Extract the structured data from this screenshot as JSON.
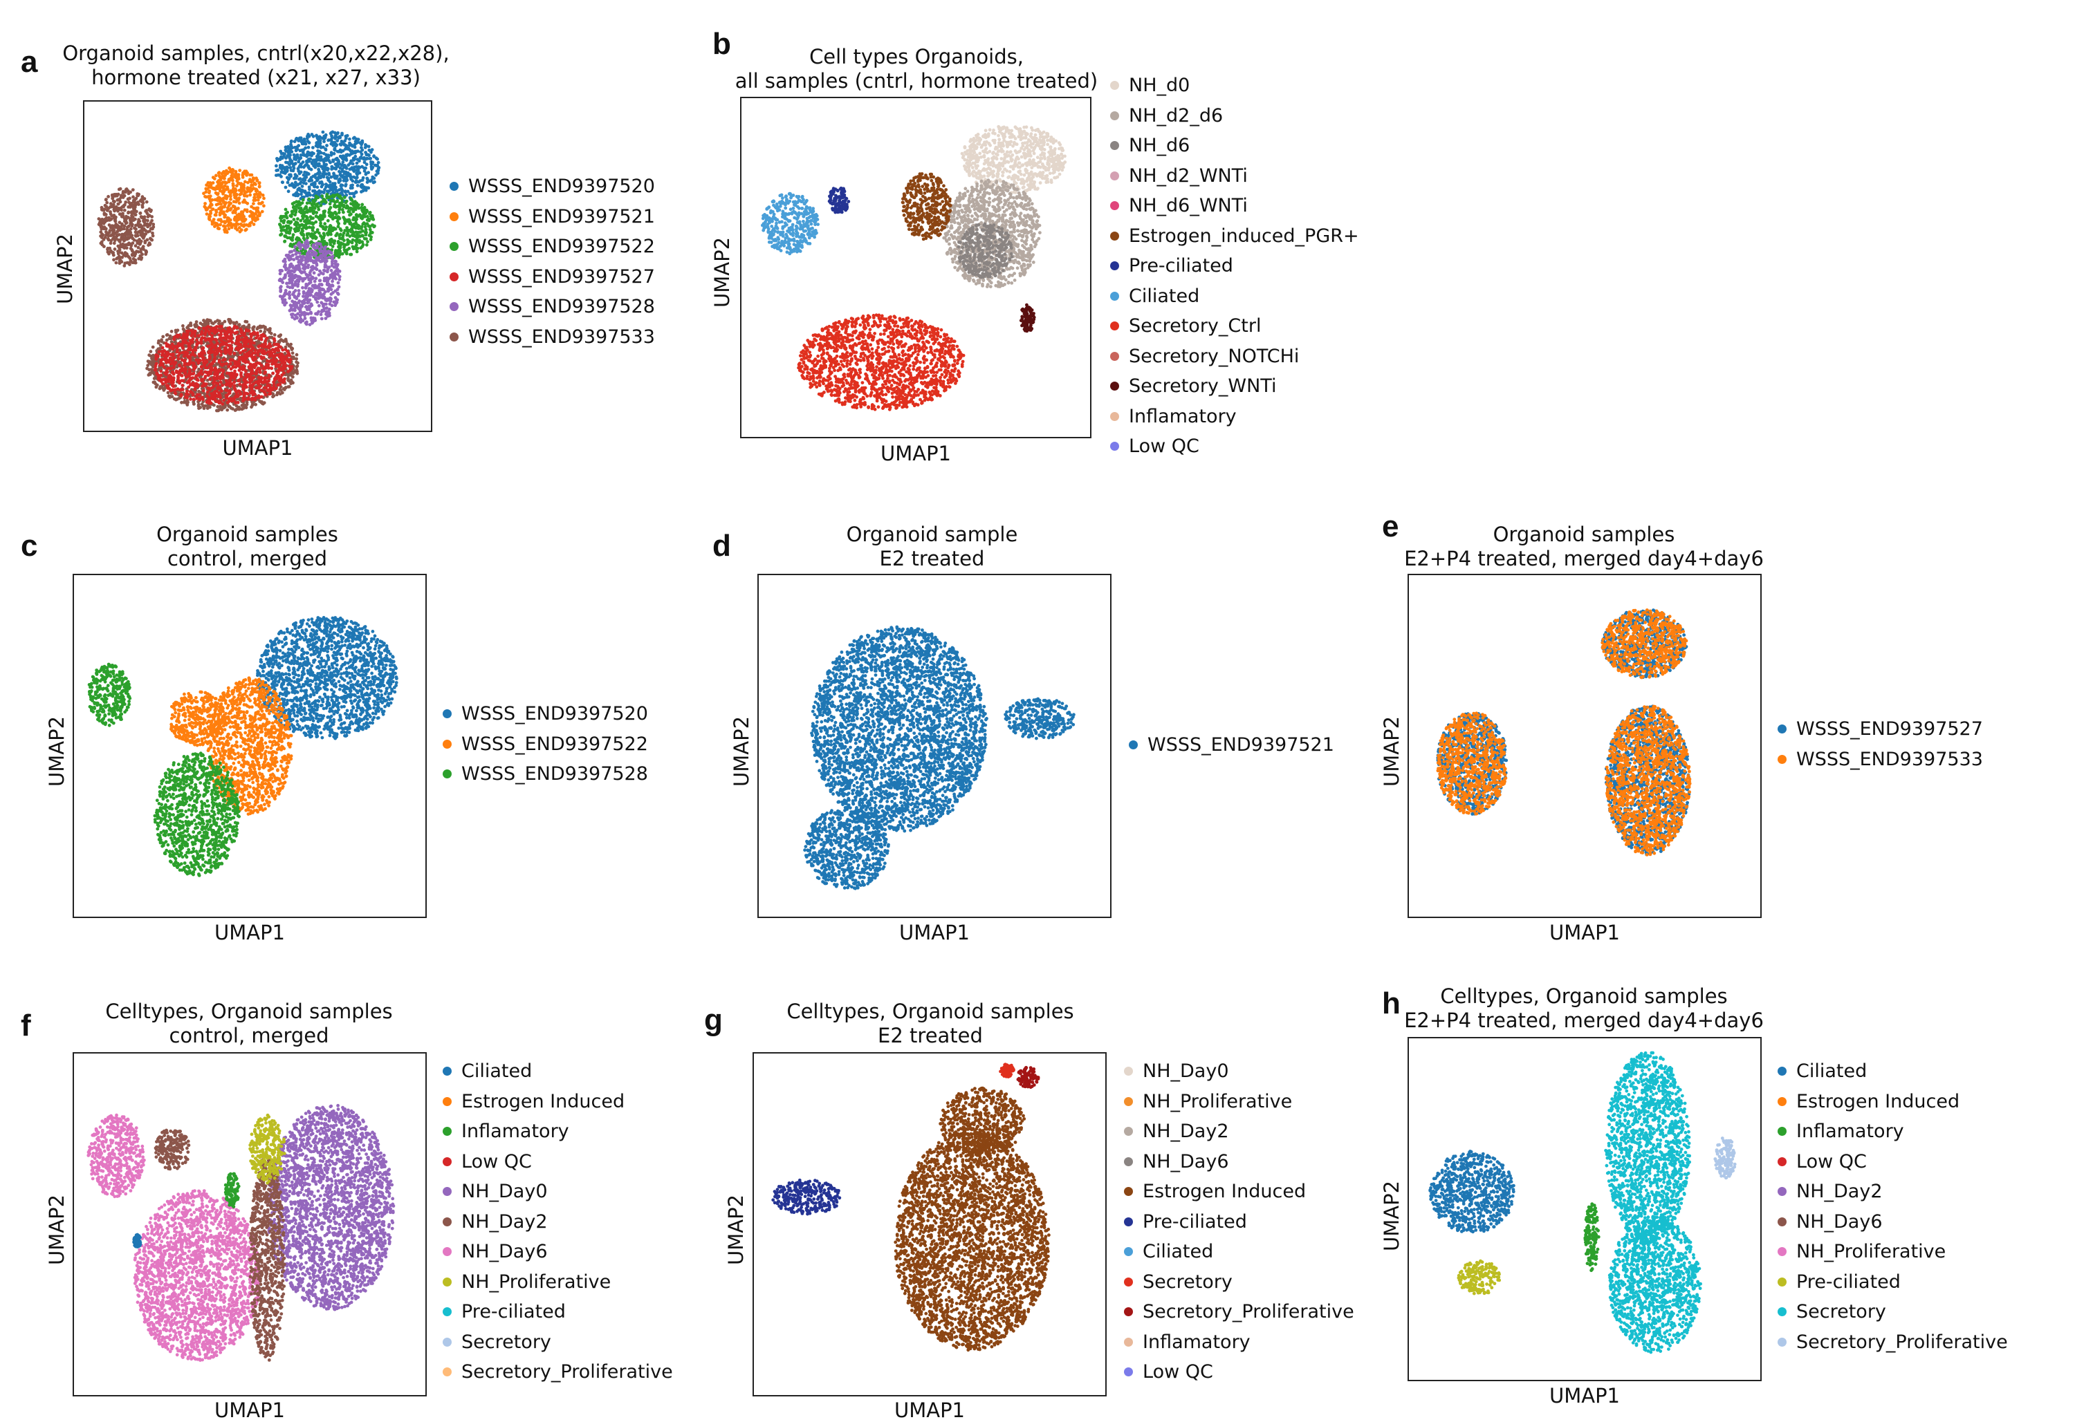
{
  "chart_data": [
    {
      "id": "a",
      "type": "scatter",
      "panel_label": "a",
      "title": "Organoid samples, cntrl(x20,x22,x28),\nhormone treated (x21, x27, x33)",
      "xlabel": "UMAP1",
      "ylabel": "UMAP2",
      "grid": false,
      "legend_position": "right",
      "series": [
        {
          "name": "WSSS_END9397520",
          "color": "#1f77b4"
        },
        {
          "name": "WSSS_END9397521",
          "color": "#ff7f0e"
        },
        {
          "name": "WSSS_END9397522",
          "color": "#2ca02c"
        },
        {
          "name": "WSSS_END9397527",
          "color": "#d62728"
        },
        {
          "name": "WSSS_END9397528",
          "color": "#9467bd"
        },
        {
          "name": "WSSS_END9397533",
          "color": "#8c564b"
        }
      ],
      "clusters": [
        {
          "series": 0,
          "cx": 0.7,
          "cy": 0.8,
          "rx": 0.15,
          "ry": 0.11
        },
        {
          "series": 1,
          "cx": 0.43,
          "cy": 0.7,
          "rx": 0.09,
          "ry": 0.1
        },
        {
          "series": 2,
          "cx": 0.7,
          "cy": 0.62,
          "rx": 0.14,
          "ry": 0.1
        },
        {
          "series": 4,
          "cx": 0.65,
          "cy": 0.45,
          "rx": 0.09,
          "ry": 0.13
        },
        {
          "series": 5,
          "cx": 0.12,
          "cy": 0.62,
          "rx": 0.08,
          "ry": 0.12
        },
        {
          "series": 5,
          "cx": 0.4,
          "cy": 0.2,
          "rx": 0.22,
          "ry": 0.14
        },
        {
          "series": 3,
          "cx": 0.4,
          "cy": 0.2,
          "rx": 0.2,
          "ry": 0.12
        }
      ]
    },
    {
      "id": "b",
      "type": "scatter",
      "panel_label": "b",
      "title": "Cell types Organoids,\nall samples (cntrl, hormone treated)",
      "xlabel": "UMAP1",
      "ylabel": "UMAP2",
      "grid": false,
      "legend_position": "right",
      "series": [
        {
          "name": "NH_d0",
          "color": "#e3d6cb"
        },
        {
          "name": "NH_d2_d6",
          "color": "#b5a9a1"
        },
        {
          "name": "NH_d6",
          "color": "#8a8482"
        },
        {
          "name": "NH_d2_WNTi",
          "color": "#d4a0b2"
        },
        {
          "name": "NH_d6_WNTi",
          "color": "#e0457b"
        },
        {
          "name": "Estrogen_induced_PGR+",
          "color": "#8b4513"
        },
        {
          "name": "Pre-ciliated",
          "color": "#253494"
        },
        {
          "name": "Ciliated",
          "color": "#4a9fd8"
        },
        {
          "name": "Secretory_Ctrl",
          "color": "#e0301e"
        },
        {
          "name": "Secretory_NOTCHi",
          "color": "#c9645b"
        },
        {
          "name": "Secretory_WNTi",
          "color": "#5a0f0f"
        },
        {
          "name": "Inflamatory",
          "color": "#e8b89a"
        },
        {
          "name": "Low QC",
          "color": "#7b7bea"
        }
      ],
      "clusters": [
        {
          "series": 0,
          "cx": 0.78,
          "cy": 0.82,
          "rx": 0.15,
          "ry": 0.1
        },
        {
          "series": 1,
          "cx": 0.72,
          "cy": 0.6,
          "rx": 0.14,
          "ry": 0.16
        },
        {
          "series": 2,
          "cx": 0.7,
          "cy": 0.55,
          "rx": 0.08,
          "ry": 0.08
        },
        {
          "series": 5,
          "cx": 0.53,
          "cy": 0.68,
          "rx": 0.07,
          "ry": 0.1
        },
        {
          "series": 7,
          "cx": 0.14,
          "cy": 0.63,
          "rx": 0.08,
          "ry": 0.09
        },
        {
          "series": 6,
          "cx": 0.28,
          "cy": 0.7,
          "rx": 0.03,
          "ry": 0.04
        },
        {
          "series": 8,
          "cx": 0.4,
          "cy": 0.22,
          "rx": 0.24,
          "ry": 0.14
        },
        {
          "series": 10,
          "cx": 0.82,
          "cy": 0.35,
          "rx": 0.02,
          "ry": 0.04
        }
      ]
    },
    {
      "id": "c",
      "type": "scatter",
      "panel_label": "c",
      "title": "Organoid samples\ncontrol, merged",
      "xlabel": "UMAP1",
      "ylabel": "UMAP2",
      "grid": false,
      "legend_position": "right",
      "series": [
        {
          "name": "WSSS_END9397520",
          "color": "#1f77b4"
        },
        {
          "name": "WSSS_END9397522",
          "color": "#ff7f0e"
        },
        {
          "name": "WSSS_END9397528",
          "color": "#2ca02c"
        }
      ],
      "clusters": [
        {
          "series": 0,
          "cx": 0.72,
          "cy": 0.7,
          "rx": 0.2,
          "ry": 0.18
        },
        {
          "series": 1,
          "cx": 0.5,
          "cy": 0.5,
          "rx": 0.12,
          "ry": 0.2
        },
        {
          "series": 1,
          "cx": 0.35,
          "cy": 0.58,
          "rx": 0.08,
          "ry": 0.08
        },
        {
          "series": 2,
          "cx": 0.35,
          "cy": 0.3,
          "rx": 0.12,
          "ry": 0.18
        },
        {
          "series": 2,
          "cx": 0.1,
          "cy": 0.65,
          "rx": 0.06,
          "ry": 0.09
        }
      ]
    },
    {
      "id": "d",
      "type": "scatter",
      "panel_label": "d",
      "title": "Organoid sample\nE2 treated",
      "xlabel": "UMAP1",
      "ylabel": "UMAP2",
      "grid": false,
      "legend_position": "right",
      "series": [
        {
          "name": "WSSS_END9397521",
          "color": "#1f77b4"
        }
      ],
      "clusters": [
        {
          "series": 0,
          "cx": 0.4,
          "cy": 0.55,
          "rx": 0.25,
          "ry": 0.3
        },
        {
          "series": 0,
          "cx": 0.25,
          "cy": 0.2,
          "rx": 0.12,
          "ry": 0.12
        },
        {
          "series": 0,
          "cx": 0.8,
          "cy": 0.58,
          "rx": 0.1,
          "ry": 0.06
        }
      ]
    },
    {
      "id": "e",
      "type": "scatter",
      "panel_label": "e",
      "title": "Organoid samples\nE2+P4 treated, merged day4+day6",
      "xlabel": "UMAP1",
      "ylabel": "UMAP2",
      "grid": false,
      "legend_position": "right",
      "series": [
        {
          "name": "WSSS_END9397527",
          "color": "#1f77b4"
        },
        {
          "name": "WSSS_END9397533",
          "color": "#ff7f0e"
        }
      ],
      "clusters": [
        {
          "series": 0,
          "cx": 0.18,
          "cy": 0.45,
          "rx": 0.1,
          "ry": 0.15
        },
        {
          "series": 1,
          "cx": 0.18,
          "cy": 0.45,
          "rx": 0.1,
          "ry": 0.15
        },
        {
          "series": 0,
          "cx": 0.67,
          "cy": 0.8,
          "rx": 0.12,
          "ry": 0.1
        },
        {
          "series": 1,
          "cx": 0.67,
          "cy": 0.8,
          "rx": 0.12,
          "ry": 0.1
        },
        {
          "series": 0,
          "cx": 0.68,
          "cy": 0.4,
          "rx": 0.12,
          "ry": 0.22
        },
        {
          "series": 1,
          "cx": 0.68,
          "cy": 0.4,
          "rx": 0.12,
          "ry": 0.22
        }
      ]
    },
    {
      "id": "f",
      "type": "scatter",
      "panel_label": "f",
      "title": "Celltypes, Organoid samples\ncontrol, merged",
      "xlabel": "UMAP1",
      "ylabel": "UMAP2",
      "grid": false,
      "legend_position": "right",
      "series": [
        {
          "name": "Ciliated",
          "color": "#1f77b4"
        },
        {
          "name": "Estrogen Induced",
          "color": "#ff7f0e"
        },
        {
          "name": "Inflamatory",
          "color": "#2ca02c"
        },
        {
          "name": "Low QC",
          "color": "#d62728"
        },
        {
          "name": "NH_Day0",
          "color": "#9467bd"
        },
        {
          "name": "NH_Day2",
          "color": "#8c564b"
        },
        {
          "name": "NH_Day6",
          "color": "#e377c2"
        },
        {
          "name": "NH_Proliferative",
          "color": "#bcbd22"
        },
        {
          "name": "Pre-ciliated",
          "color": "#17becf"
        },
        {
          "name": "Secretory",
          "color": "#aec7e8"
        },
        {
          "name": "Secretory_Proliferative",
          "color": "#ffbb78"
        }
      ],
      "clusters": [
        {
          "series": 4,
          "cx": 0.73,
          "cy": 0.55,
          "rx": 0.18,
          "ry": 0.3
        },
        {
          "series": 6,
          "cx": 0.35,
          "cy": 0.35,
          "rx": 0.18,
          "ry": 0.25
        },
        {
          "series": 6,
          "cx": 0.12,
          "cy": 0.7,
          "rx": 0.08,
          "ry": 0.12
        },
        {
          "series": 5,
          "cx": 0.55,
          "cy": 0.4,
          "rx": 0.05,
          "ry": 0.3
        },
        {
          "series": 5,
          "cx": 0.28,
          "cy": 0.72,
          "rx": 0.05,
          "ry": 0.06
        },
        {
          "series": 7,
          "cx": 0.55,
          "cy": 0.72,
          "rx": 0.05,
          "ry": 0.1
        },
        {
          "series": 2,
          "cx": 0.45,
          "cy": 0.6,
          "rx": 0.02,
          "ry": 0.05
        },
        {
          "series": 0,
          "cx": 0.18,
          "cy": 0.45,
          "rx": 0.01,
          "ry": 0.02
        }
      ]
    },
    {
      "id": "g",
      "type": "scatter",
      "panel_label": "g",
      "title": "Celltypes, Organoid samples\nE2 treated",
      "xlabel": "UMAP1",
      "ylabel": "UMAP2",
      "grid": false,
      "legend_position": "right",
      "series": [
        {
          "name": "NH_Day0",
          "color": "#e3d6cb"
        },
        {
          "name": "NH_Proliferative",
          "color": "#f28e2b"
        },
        {
          "name": "NH_Day2",
          "color": "#b5a9a1"
        },
        {
          "name": "NH_Day6",
          "color": "#8a8482"
        },
        {
          "name": "Estrogen Induced",
          "color": "#8b4513"
        },
        {
          "name": "Pre-ciliated",
          "color": "#253494"
        },
        {
          "name": "Ciliated",
          "color": "#4a9fd8"
        },
        {
          "name": "Secretory",
          "color": "#e0301e"
        },
        {
          "name": "Secretory_Proliferative",
          "color": "#a31515"
        },
        {
          "name": "Inflamatory",
          "color": "#e8b89a"
        },
        {
          "name": "Low QC",
          "color": "#7b7bea"
        }
      ],
      "clusters": [
        {
          "series": 4,
          "cx": 0.62,
          "cy": 0.45,
          "rx": 0.22,
          "ry": 0.32
        },
        {
          "series": 4,
          "cx": 0.65,
          "cy": 0.8,
          "rx": 0.12,
          "ry": 0.1
        },
        {
          "series": 5,
          "cx": 0.15,
          "cy": 0.58,
          "rx": 0.1,
          "ry": 0.05
        },
        {
          "series": 8,
          "cx": 0.78,
          "cy": 0.93,
          "rx": 0.03,
          "ry": 0.03
        },
        {
          "series": 7,
          "cx": 0.72,
          "cy": 0.95,
          "rx": 0.02,
          "ry": 0.02
        }
      ]
    },
    {
      "id": "h",
      "type": "scatter",
      "panel_label": "h",
      "title": "Celltypes, Organoid samples\nE2+P4 treated, merged day4+day6",
      "xlabel": "UMAP1",
      "ylabel": "UMAP2",
      "grid": false,
      "legend_position": "right",
      "series": [
        {
          "name": "Ciliated",
          "color": "#1f77b4"
        },
        {
          "name": "Estrogen Induced",
          "color": "#ff7f0e"
        },
        {
          "name": "Inflamatory",
          "color": "#2ca02c"
        },
        {
          "name": "Low QC",
          "color": "#d62728"
        },
        {
          "name": "NH_Day2",
          "color": "#9467bd"
        },
        {
          "name": "NH_Day6",
          "color": "#8c564b"
        },
        {
          "name": "NH_Proliferative",
          "color": "#e377c2"
        },
        {
          "name": "Pre-ciliated",
          "color": "#bcbd22"
        },
        {
          "name": "Secretory",
          "color": "#17becf"
        },
        {
          "name": "Secretory_Proliferative",
          "color": "#aec7e8"
        }
      ],
      "clusters": [
        {
          "series": 8,
          "cx": 0.68,
          "cy": 0.68,
          "rx": 0.12,
          "ry": 0.28
        },
        {
          "series": 8,
          "cx": 0.7,
          "cy": 0.28,
          "rx": 0.13,
          "ry": 0.2
        },
        {
          "series": 0,
          "cx": 0.18,
          "cy": 0.55,
          "rx": 0.12,
          "ry": 0.12
        },
        {
          "series": 7,
          "cx": 0.2,
          "cy": 0.3,
          "rx": 0.06,
          "ry": 0.05
        },
        {
          "series": 2,
          "cx": 0.52,
          "cy": 0.42,
          "rx": 0.02,
          "ry": 0.1
        },
        {
          "series": 9,
          "cx": 0.9,
          "cy": 0.65,
          "rx": 0.03,
          "ry": 0.06
        }
      ]
    }
  ]
}
